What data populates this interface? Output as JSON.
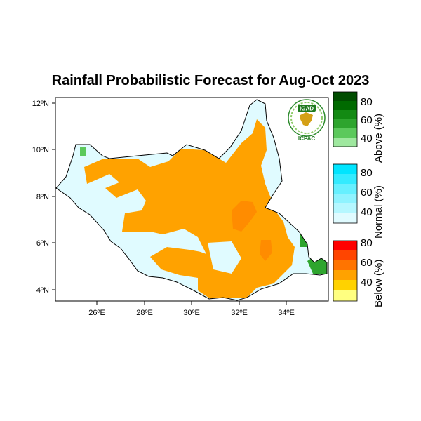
{
  "title": "Rainfall Probabilistic Forecast for Aug-Oct 2023",
  "lat_ticks": [
    "12ºN",
    "10ºN",
    "8ºN",
    "6ºN",
    "4ºN"
  ],
  "lon_ticks": [
    "26ºE",
    "28ºE",
    "30ºE",
    "32ºE",
    "34ºE"
  ],
  "logo": {
    "top": "IGAD",
    "bottom": "ICPAC"
  },
  "legend": {
    "above": {
      "title": "Above (%)",
      "labels": [
        "80",
        "60",
        "40"
      ],
      "colors": [
        "#004d00",
        "#006a00",
        "#138a13",
        "#2ea52e",
        "#5cc95c",
        "#9fe89f"
      ]
    },
    "normal": {
      "title": "Normal (%)",
      "labels": [
        "80",
        "60",
        "40"
      ],
      "colors": [
        "#00e5ff",
        "#33ebff",
        "#66f0ff",
        "#8ff3ff",
        "#b5f7ff",
        "#e0fbff"
      ]
    },
    "below": {
      "title": "Below (%)",
      "labels": [
        "80",
        "60",
        "40"
      ],
      "colors": [
        "#ff0000",
        "#ff4500",
        "#ff7400",
        "#ffa200",
        "#ffd200",
        "#ffff80"
      ]
    }
  },
  "colors": {
    "below_40": "#ffa200",
    "below_45": "#ff8c00",
    "normal": "#e0fbff",
    "above": "#2ea52e",
    "above_light": "#5cc95c"
  }
}
